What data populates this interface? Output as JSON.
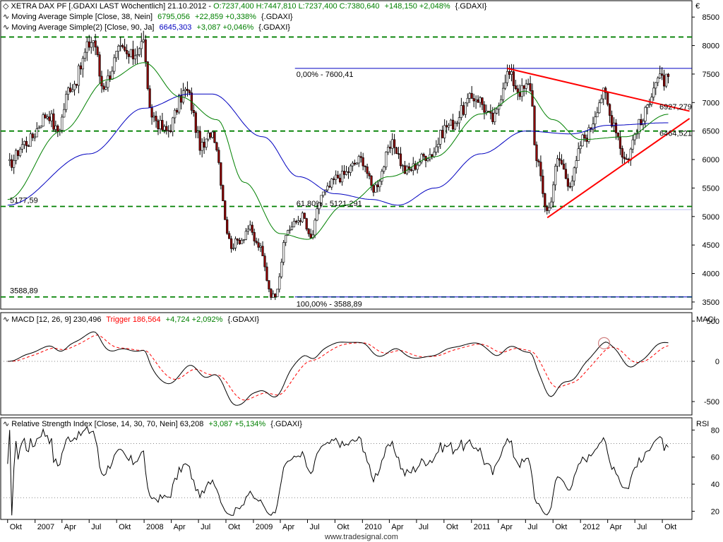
{
  "currency_symbol": "€",
  "watermark": "www.tradesignal.com",
  "chart_data": [
    {
      "type": "candlestick",
      "header": {
        "title": "XETRA DAX PF [.GDAXI LAST Wöchentlich] 21.10.2012",
        "ohlc_text": "O:7237,400 H:7447,810 L:7237,400 C:7380,640",
        "change_text": "+148,150 +2,048%",
        "ma1_label": "Moving Average Simple [Close, 38, Nein]",
        "ma1_value": "6795,056",
        "ma1_change": "+22,859 +0,338%",
        "ma1_symbol": "{.GDAXI}",
        "ma2_label": "Moving Average Simple(2) [Close, 90, Ja]",
        "ma2_value": "6645,303",
        "ma2_change": "+3,087 +0,046%",
        "ma2_symbol": "{.GDAXI}"
      },
      "ylim": [
        3400,
        8750
      ],
      "yticks": [
        "3500",
        "4000",
        "4500",
        "5000",
        "5500",
        "6000",
        "6500",
        "7000",
        "7500",
        "8000",
        "8500"
      ],
      "anchor_points": [
        [
          "2006-10-01",
          5900
        ],
        [
          "2006-12-01",
          6300
        ],
        [
          "2007-02-15",
          6800
        ],
        [
          "2007-03-15",
          6500
        ],
        [
          "2007-05-01",
          7300
        ],
        [
          "2007-07-15",
          8100
        ],
        [
          "2007-08-15",
          7300
        ],
        [
          "2007-10-15",
          7900
        ],
        [
          "2007-11-15",
          7800
        ],
        [
          "2007-12-31",
          8050
        ],
        [
          "2008-01-20",
          6800
        ],
        [
          "2008-03-15",
          6500
        ],
        [
          "2008-05-20",
          7200
        ],
        [
          "2008-07-15",
          6200
        ],
        [
          "2008-08-15",
          6500
        ],
        [
          "2008-10-20",
          4500
        ],
        [
          "2008-11-20",
          4600
        ],
        [
          "2008-12-15",
          4800
        ],
        [
          "2009-01-15",
          4500
        ],
        [
          "2009-03-08",
          3600
        ],
        [
          "2009-05-01",
          4800
        ],
        [
          "2009-06-15",
          5000
        ],
        [
          "2009-07-10",
          4600
        ],
        [
          "2009-08-20",
          5400
        ],
        [
          "2009-10-15",
          5700
        ],
        [
          "2009-12-31",
          6000
        ],
        [
          "2010-02-05",
          5500
        ],
        [
          "2010-04-15",
          6250
        ],
        [
          "2010-05-25",
          5800
        ],
        [
          "2010-08-15",
          6100
        ],
        [
          "2010-10-15",
          6600
        ],
        [
          "2011-01-15",
          7100
        ],
        [
          "2011-03-15",
          6700
        ],
        [
          "2011-05-01",
          7500
        ],
        [
          "2011-06-15",
          7200
        ],
        [
          "2011-07-15",
          7300
        ],
        [
          "2011-08-10",
          5900
        ],
        [
          "2011-09-12",
          5100
        ],
        [
          "2011-10-20",
          6000
        ],
        [
          "2011-11-25",
          5600
        ],
        [
          "2012-01-15",
          6400
        ],
        [
          "2012-03-20",
          7150
        ],
        [
          "2012-04-15",
          6700
        ],
        [
          "2012-06-01",
          6000
        ],
        [
          "2012-07-15",
          6600
        ],
        [
          "2012-09-15",
          7400
        ],
        [
          "2012-10-21",
          7380
        ]
      ],
      "ma38_anchor_points": [
        [
          "2006-10-01",
          5300
        ],
        [
          "2007-04-01",
          6500
        ],
        [
          "2007-09-01",
          7400
        ],
        [
          "2008-01-01",
          7700
        ],
        [
          "2008-05-01",
          7100
        ],
        [
          "2008-09-01",
          6700
        ],
        [
          "2008-12-01",
          5600
        ],
        [
          "2009-04-01",
          4700
        ],
        [
          "2009-07-01",
          4600
        ],
        [
          "2009-11-01",
          5200
        ],
        [
          "2010-04-01",
          5700
        ],
        [
          "2010-09-01",
          6050
        ],
        [
          "2011-02-01",
          6800
        ],
        [
          "2011-07-01",
          7200
        ],
        [
          "2011-10-01",
          6700
        ],
        [
          "2012-01-01",
          6350
        ],
        [
          "2012-06-01",
          6400
        ],
        [
          "2012-10-21",
          6795
        ]
      ],
      "ma90_anchor_points": [
        [
          "2006-10-01",
          5200
        ],
        [
          "2007-07-01",
          6100
        ],
        [
          "2008-01-01",
          6900
        ],
        [
          "2008-06-01",
          7150
        ],
        [
          "2008-08-15",
          7150
        ],
        [
          "2009-02-01",
          6400
        ],
        [
          "2009-06-01",
          5700
        ],
        [
          "2009-10-01",
          5400
        ],
        [
          "2010-02-01",
          5300
        ],
        [
          "2010-05-01",
          5200
        ],
        [
          "2010-09-01",
          5500
        ],
        [
          "2011-02-01",
          6100
        ],
        [
          "2011-07-01",
          6500
        ],
        [
          "2011-12-01",
          6450
        ],
        [
          "2012-04-01",
          6600
        ],
        [
          "2012-10-21",
          6645
        ]
      ],
      "hlines_dashed_green": [
        8150,
        6500,
        5177.59,
        3588.89
      ],
      "hline_labels": [
        {
          "value": 5177.59,
          "text": "5177,59"
        },
        {
          "value": 3588.89,
          "text": "3588,89"
        }
      ],
      "fibonacci": {
        "top_value": 7600.41,
        "top_label": "0,00% - 7600,41",
        "mid_value": 5121.291,
        "mid_label": "61,80% - 5121,291",
        "bottom_value": 3588.89,
        "bottom_label": "100,00% - 3588,89"
      },
      "trendlines_red": [
        {
          "from": [
            "2011-05-01",
            7600
          ],
          "to": [
            "2012-12-31",
            6850
          ]
        },
        {
          "from": [
            "2011-09-12",
            4980
          ],
          "to": [
            "2012-12-31",
            6720
          ]
        }
      ],
      "trend_labels": [
        {
          "text": "6927,279",
          "value": 6927.279
        },
        {
          "text": "6464,521",
          "value": 6464.521
        }
      ],
      "colors": {
        "ma38": "#008000",
        "ma90": "#0000c0",
        "trend": "#ff0000",
        "candle": "#000000",
        "candle_body_down": "#8b0000"
      }
    },
    {
      "type": "line",
      "header": {
        "title": "MACD [12, 26, 9] 230,496",
        "trigger_label": "Trigger 186,564",
        "change": "+4,724 +2,092%",
        "symbol": "{.GDAXI}"
      },
      "axis_label": "MACI",
      "yticks": [
        "-500",
        "0",
        "500"
      ],
      "colors": {
        "macd": "#000000",
        "trigger": "#ff0000"
      }
    },
    {
      "type": "line",
      "header": {
        "title": "Relative Strength Index [Close, 14, 30, 70, Nein] 63,208",
        "change": "+3,087 +5,134%",
        "symbol": "{.GDAXI}"
      },
      "axis_label": "RSI",
      "ylim": [
        15,
        88
      ],
      "yticks": [
        "20",
        "40",
        "60",
        "80"
      ],
      "reference_levels": [
        30,
        70
      ]
    }
  ],
  "x_axis": {
    "labels": [
      {
        "text": "Okt",
        "date": "2006-10-01"
      },
      {
        "text": "2007",
        "date": "2007-01-01"
      },
      {
        "text": "Apr",
        "date": "2007-04-01"
      },
      {
        "text": "Jul",
        "date": "2007-07-01"
      },
      {
        "text": "Okt",
        "date": "2007-10-01"
      },
      {
        "text": "2008",
        "date": "2008-01-01"
      },
      {
        "text": "Apr",
        "date": "2008-04-01"
      },
      {
        "text": "Jul",
        "date": "2008-07-01"
      },
      {
        "text": "Okt",
        "date": "2008-10-01"
      },
      {
        "text": "2009",
        "date": "2009-01-01"
      },
      {
        "text": "Apr",
        "date": "2009-04-01"
      },
      {
        "text": "Jul",
        "date": "2009-07-01"
      },
      {
        "text": "Okt",
        "date": "2009-10-01"
      },
      {
        "text": "2010",
        "date": "2010-01-01"
      },
      {
        "text": "Apr",
        "date": "2010-04-01"
      },
      {
        "text": "Jul",
        "date": "2010-07-01"
      },
      {
        "text": "Okt",
        "date": "2010-10-01"
      },
      {
        "text": "2011",
        "date": "2011-01-01"
      },
      {
        "text": "Apr",
        "date": "2011-04-01"
      },
      {
        "text": "Jul",
        "date": "2011-07-01"
      },
      {
        "text": "Okt",
        "date": "2011-10-01"
      },
      {
        "text": "2012",
        "date": "2012-01-01"
      },
      {
        "text": "Apr",
        "date": "2012-04-01"
      },
      {
        "text": "Jul",
        "date": "2012-07-01"
      },
      {
        "text": "Okt",
        "date": "2012-10-01"
      }
    ]
  }
}
